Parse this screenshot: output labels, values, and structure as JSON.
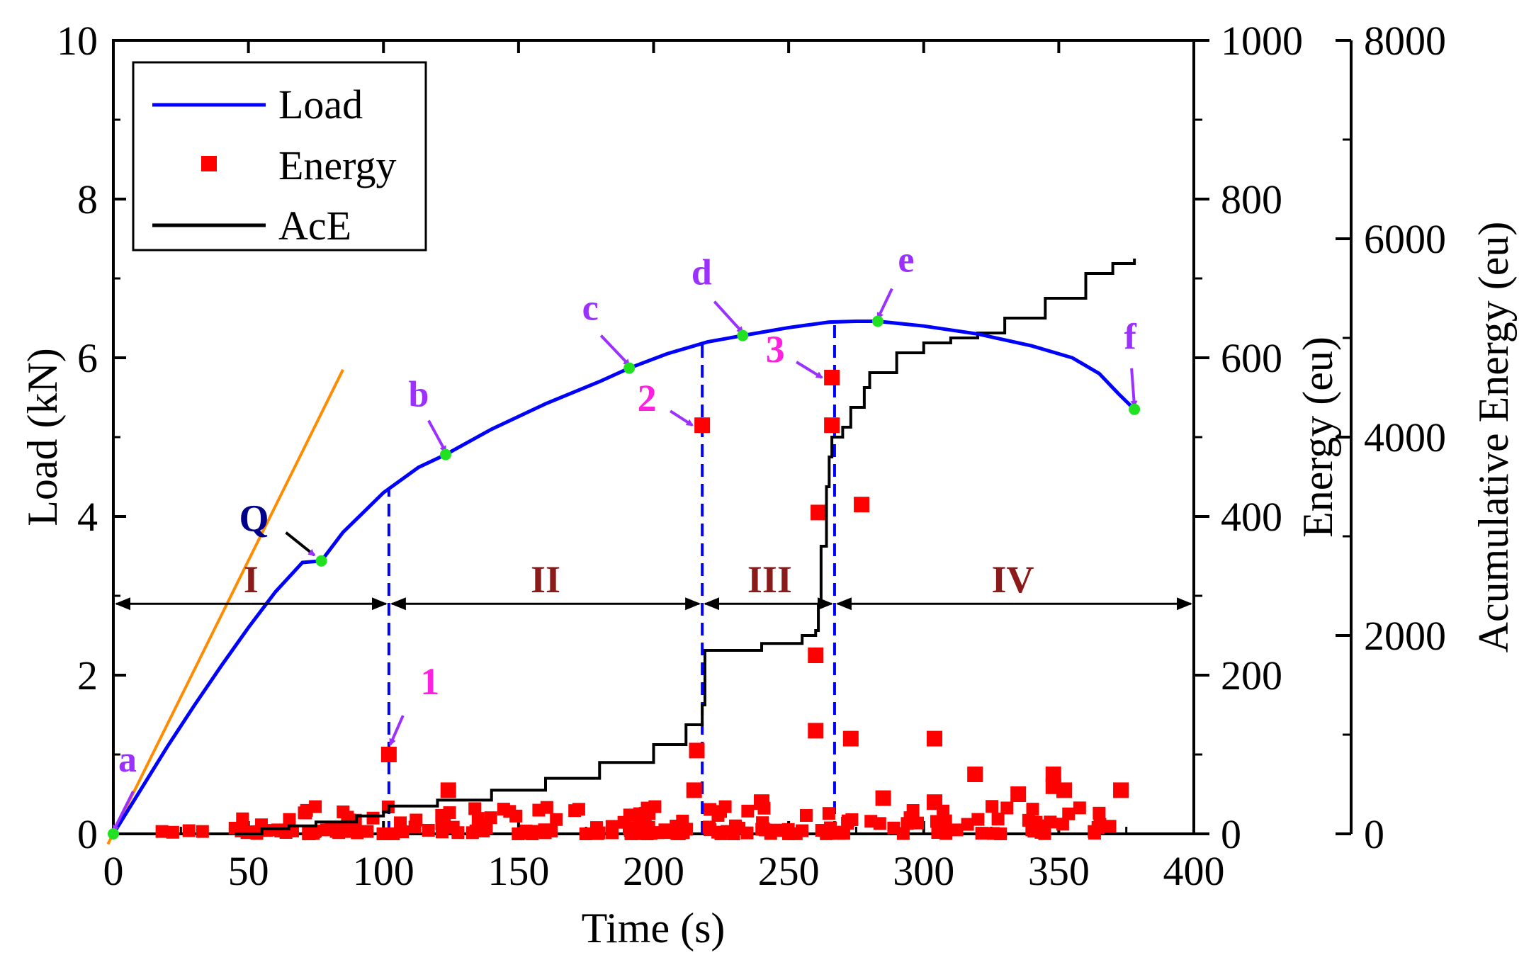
{
  "chart_data": {
    "type": "line",
    "xlabel": "Time (s)",
    "ylabel_left": "Load (kN)",
    "ylabel_right1": "Energy (eu)",
    "ylabel_right2": "Acumulative Energy (eu)",
    "xlim": [
      0,
      400
    ],
    "ylim_left": [
      0,
      10
    ],
    "ylim_right1": [
      0,
      1000
    ],
    "ylim_right2": [
      0,
      8000
    ],
    "x_ticks": [
      "0",
      "50",
      "100",
      "150",
      "200",
      "250",
      "300",
      "350",
      "400"
    ],
    "y_left_ticks": [
      "0",
      "2",
      "4",
      "6",
      "8",
      "10"
    ],
    "y_right1_ticks": [
      "0",
      "200",
      "400",
      "600",
      "800",
      "1000"
    ],
    "y_right2_ticks": [
      "0",
      "2000",
      "4000",
      "6000",
      "8000"
    ],
    "legend": {
      "position": "top-left",
      "items": [
        {
          "label": "Load",
          "kind": "line",
          "color": "#0000ff"
        },
        {
          "label": "Energy",
          "kind": "square",
          "color": "#ff0000"
        },
        {
          "label": "AcE",
          "kind": "line",
          "color": "#000000"
        }
      ]
    },
    "series_load": {
      "name": "Load",
      "color": "#0000ff",
      "points": [
        [
          0,
          0
        ],
        [
          10,
          0.55
        ],
        [
          20,
          1.1
        ],
        [
          30,
          1.62
        ],
        [
          40,
          2.12
        ],
        [
          50,
          2.6
        ],
        [
          60,
          3.05
        ],
        [
          70,
          3.42
        ],
        [
          77,
          3.44
        ],
        [
          85,
          3.8
        ],
        [
          100,
          4.3
        ],
        [
          113,
          4.62
        ],
        [
          123,
          4.78
        ],
        [
          140,
          5.1
        ],
        [
          160,
          5.42
        ],
        [
          180,
          5.7
        ],
        [
          191,
          5.87
        ],
        [
          205,
          6.05
        ],
        [
          220,
          6.2
        ],
        [
          233,
          6.28
        ],
        [
          250,
          6.38
        ],
        [
          265,
          6.45
        ],
        [
          275,
          6.46
        ],
        [
          283,
          6.46
        ],
        [
          300,
          6.4
        ],
        [
          320,
          6.3
        ],
        [
          340,
          6.15
        ],
        [
          355,
          6.0
        ],
        [
          365,
          5.8
        ],
        [
          372,
          5.55
        ],
        [
          378,
          5.35
        ]
      ]
    },
    "series_ace": {
      "name": "AcE",
      "color": "#000000",
      "points": [
        [
          45,
          0
        ],
        [
          55,
          50
        ],
        [
          65,
          80
        ],
        [
          75,
          120
        ],
        [
          90,
          180
        ],
        [
          100,
          220
        ],
        [
          102,
          280
        ],
        [
          120,
          340
        ],
        [
          140,
          440
        ],
        [
          160,
          560
        ],
        [
          180,
          720
        ],
        [
          200,
          900
        ],
        [
          212,
          1100
        ],
        [
          218,
          1300
        ],
        [
          219,
          1850
        ],
        [
          225,
          1850
        ],
        [
          240,
          1920
        ],
        [
          255,
          2000
        ],
        [
          260,
          2050
        ],
        [
          261,
          2300
        ],
        [
          262,
          2900
        ],
        [
          264,
          3500
        ],
        [
          265,
          3800
        ],
        [
          266,
          4000
        ],
        [
          270,
          4100
        ],
        [
          273,
          4300
        ],
        [
          278,
          4500
        ],
        [
          280,
          4650
        ],
        [
          290,
          4850
        ],
        [
          300,
          4950
        ],
        [
          310,
          5000
        ],
        [
          320,
          5050
        ],
        [
          330,
          5200
        ],
        [
          345,
          5400
        ],
        [
          360,
          5650
        ],
        [
          370,
          5750
        ],
        [
          378,
          5800
        ]
      ]
    },
    "series_energy": {
      "name": "Energy",
      "color": "#ff0000",
      "big_points": [
        [
          102,
          100
        ],
        [
          218,
          515
        ],
        [
          266,
          575
        ],
        [
          266,
          515
        ],
        [
          261,
          405
        ],
        [
          277,
          415
        ],
        [
          260,
          225
        ],
        [
          260,
          130
        ],
        [
          273,
          120
        ],
        [
          304,
          120
        ],
        [
          216,
          105
        ],
        [
          319,
          75
        ],
        [
          348,
          75
        ],
        [
          240,
          40
        ],
        [
          348,
          60
        ],
        [
          373,
          55
        ],
        [
          124,
          55
        ],
        [
          215,
          55
        ],
        [
          285,
          45
        ],
        [
          304,
          40
        ],
        [
          335,
          50
        ],
        [
          352,
          55
        ]
      ],
      "noise_count": 200,
      "noise_range": [
        45,
        378
      ],
      "noise_max": 35
    },
    "annotations": {
      "point_letters": [
        {
          "label": "a",
          "x": 0,
          "y": 0
        },
        {
          "label": "b",
          "x": 123,
          "y": 4.78
        },
        {
          "label": "c",
          "x": 191,
          "y": 5.87
        },
        {
          "label": "d",
          "x": 233,
          "y": 6.28
        },
        {
          "label": "e",
          "x": 283,
          "y": 6.46
        },
        {
          "label": "f",
          "x": 378,
          "y": 5.35
        }
      ],
      "event_numbers": [
        {
          "label": "1",
          "x": 102,
          "energy": 100
        },
        {
          "label": "2",
          "x": 218,
          "energy": 515
        },
        {
          "label": "3",
          "x": 266,
          "energy": 575
        }
      ],
      "q_label": "Q",
      "q_point": {
        "x": 77,
        "y": 3.44
      },
      "tangent_line": {
        "x1": -2,
        "y1": -0.13,
        "x2": 85,
        "y2": 5.85
      },
      "stage_boundaries": [
        102,
        218,
        267
      ],
      "stage_labels": [
        {
          "label": "I",
          "x": 51
        },
        {
          "label": "II",
          "x": 160
        },
        {
          "label": "III",
          "x": 243
        },
        {
          "label": "IV",
          "x": 333
        }
      ],
      "stage_arrow_y": 2.9
    }
  }
}
